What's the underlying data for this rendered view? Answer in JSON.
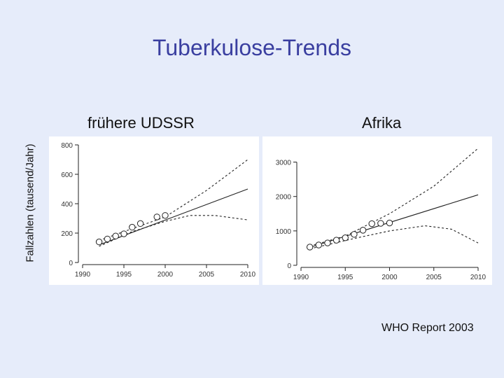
{
  "slide": {
    "title": "Tuberkulose-Trends",
    "ylabel": "Fallzahlen (tausend/Jahr)",
    "source": "WHO Report 2003"
  },
  "colors": {
    "background": "#e6ecfa",
    "title": "#3a3fa0",
    "line": "#222222"
  },
  "chart_data": [
    {
      "type": "scatter",
      "title": "frühere UDSSR",
      "xlim": [
        1990,
        2010
      ],
      "ylim": [
        0,
        800
      ],
      "xticks": [
        1990,
        1995,
        2000,
        2005,
        2010
      ],
      "yticks": [
        0,
        200,
        400,
        600,
        800
      ],
      "observed": {
        "x": [
          1992,
          1993,
          1994,
          1995,
          1996,
          1997,
          1999,
          2000
        ],
        "y": [
          140,
          160,
          180,
          195,
          240,
          265,
          310,
          320
        ]
      },
      "trend": {
        "x": [
          1992,
          2010
        ],
        "y": [
          120,
          500
        ]
      },
      "upper_bound": {
        "x": [
          1992,
          2000,
          2005,
          2010
        ],
        "y": [
          150,
          310,
          490,
          700
        ]
      },
      "lower_bound": {
        "x": [
          1992,
          1996,
          2000,
          2003,
          2006,
          2010
        ],
        "y": [
          110,
          210,
          280,
          320,
          320,
          290
        ]
      }
    },
    {
      "type": "scatter",
      "title": "Afrika",
      "xlim": [
        1990,
        2010
      ],
      "ylim": [
        0,
        3500
      ],
      "xticks": [
        1990,
        1995,
        2000,
        2005,
        2010
      ],
      "yticks": [
        0,
        1000,
        2000,
        3000
      ],
      "observed": {
        "x": [
          1991,
          1992,
          1993,
          1994,
          1995,
          1996,
          1997,
          1998,
          1999,
          2000
        ],
        "y": [
          530,
          590,
          650,
          730,
          800,
          900,
          1020,
          1210,
          1220,
          1230
        ]
      },
      "trend": {
        "x": [
          1991,
          2010
        ],
        "y": [
          520,
          2050
        ]
      },
      "upper_bound": {
        "x": [
          1991,
          1995,
          2000,
          2005,
          2010
        ],
        "y": [
          560,
          850,
          1500,
          2300,
          3400
        ]
      },
      "lower_bound": {
        "x": [
          1991,
          1996,
          2000,
          2004,
          2007,
          2010
        ],
        "y": [
          480,
          780,
          1000,
          1150,
          1050,
          650
        ]
      }
    }
  ]
}
